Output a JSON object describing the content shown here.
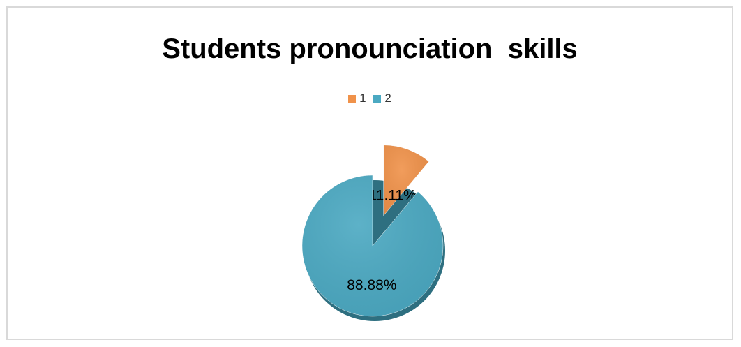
{
  "chart_data": {
    "type": "pie",
    "title": "Students pronounciation  skills",
    "categories": [
      "1",
      "2"
    ],
    "values": [
      11.11,
      88.88
    ],
    "data_labels": [
      "11.11%",
      "88.88%"
    ],
    "colors": [
      "#f0924a",
      "#4ba9c2"
    ],
    "legend_position": "top",
    "exploded": true
  }
}
